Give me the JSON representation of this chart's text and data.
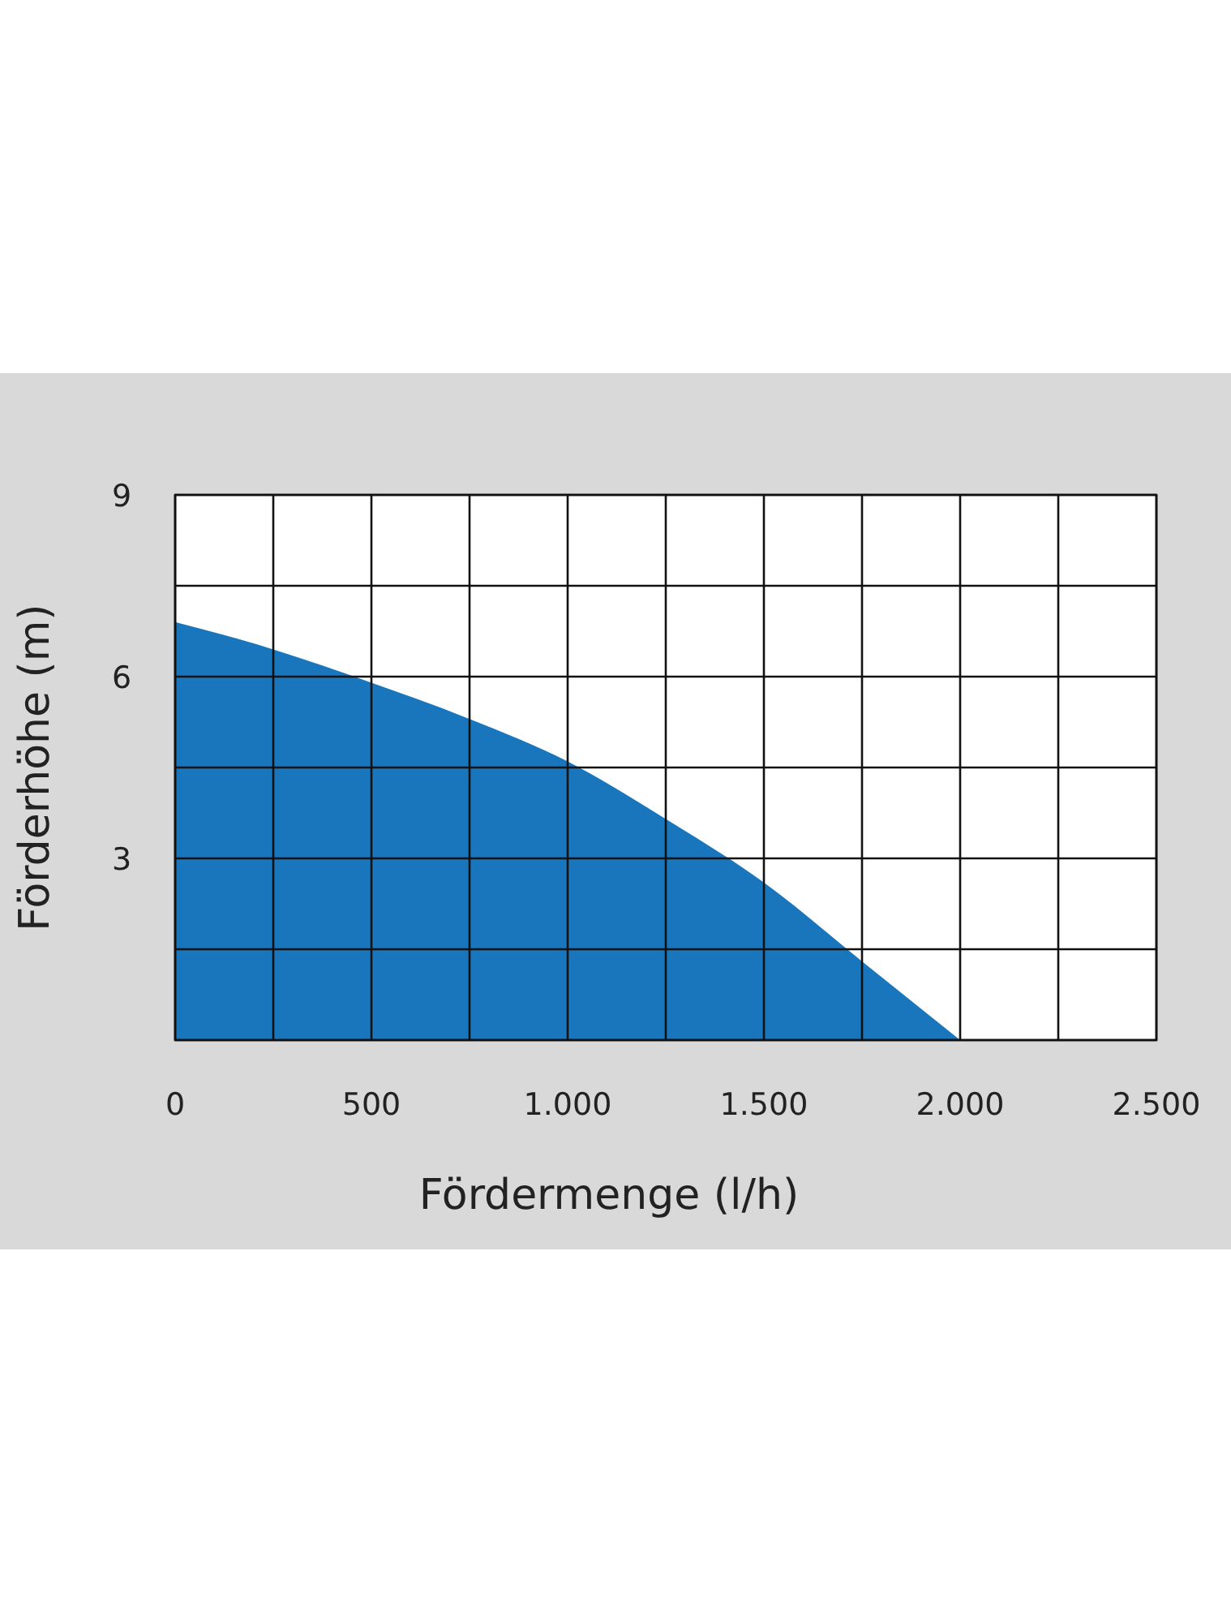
{
  "chart_data": {
    "type": "area",
    "xlabel": "Fördermenge (l/h)",
    "ylabel": "Förderhöhe (m)",
    "x": [
      0,
      250,
      500,
      750,
      1000,
      1250,
      1500,
      1750,
      2000
    ],
    "series": [
      {
        "color": "#1a76bc",
        "values": [
          6.9,
          6.45,
          5.9,
          5.3,
          4.6,
          3.65,
          2.6,
          1.3,
          0
        ]
      }
    ],
    "xlim": [
      0,
      2500
    ],
    "xticks": [
      0,
      500,
      {
        "value": 1000,
        "label": "1.000"
      },
      {
        "value": 1500,
        "label": "1.500"
      },
      {
        "value": 2000,
        "label": "2.000"
      },
      {
        "value": 2500,
        "label": "2.500"
      },
      {
        "value": 250,
        "label": null
      },
      {
        "value": 750,
        "label": null
      },
      {
        "value": 1250,
        "label": null
      },
      {
        "value": 1750,
        "label": null
      },
      {
        "value": 2250,
        "label": null
      }
    ],
    "ylim": [
      0,
      9
    ],
    "yticks": [
      {
        "value": 0,
        "label": null
      },
      {
        "value": 1.5,
        "label": null
      },
      3,
      {
        "value": 4.5,
        "label": null
      },
      6,
      {
        "value": 7.5,
        "label": null
      },
      9
    ],
    "grid": true
  }
}
